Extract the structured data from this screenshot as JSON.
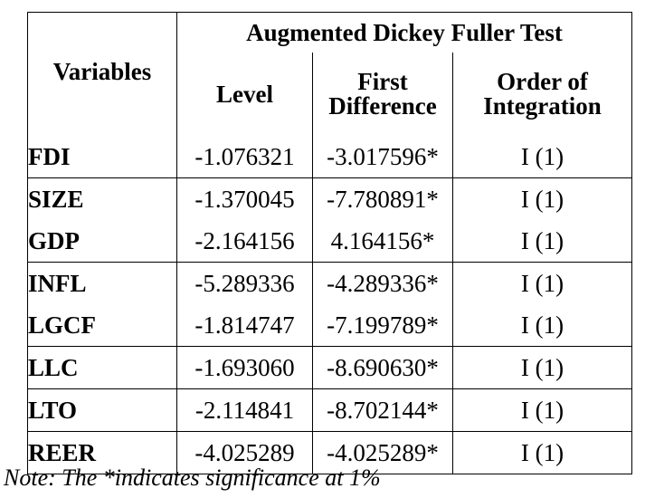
{
  "table": {
    "headers": {
      "variables": "Variables",
      "group": "Augmented Dickey Fuller Test",
      "level": "Level",
      "first_difference_line1": "First",
      "first_difference_line2": "Difference",
      "order_line1": "Order of",
      "order_line2": "Integration"
    },
    "rows": [
      {
        "variable": "FDI",
        "level": "-1.076321",
        "first_difference": "-3.017596*",
        "order": "I (1)"
      },
      {
        "variable": "SIZE",
        "level": "-1.370045",
        "first_difference": "-7.780891*",
        "order": "I (1)"
      },
      {
        "variable": "GDP",
        "level": "-2.164156",
        "first_difference": "4.164156*",
        "order": "I (1)"
      },
      {
        "variable": "INFL",
        "level": "-5.289336",
        "first_difference": "-4.289336*",
        "order": "I (1)"
      },
      {
        "variable": "LGCF",
        "level": "-1.814747",
        "first_difference": "-7.199789*",
        "order": "I (1)"
      },
      {
        "variable": "LLC",
        "level": "-1.693060",
        "first_difference": "-8.690630*",
        "order": "I (1)"
      },
      {
        "variable": "LTO",
        "level": "-2.114841",
        "first_difference": "-8.702144*",
        "order": "I (1)"
      },
      {
        "variable": "REER",
        "level": "-4.025289",
        "first_difference": "-4.025289*",
        "order": "I (1)"
      }
    ]
  },
  "note": "Note: The *indicates significance at 1%"
}
